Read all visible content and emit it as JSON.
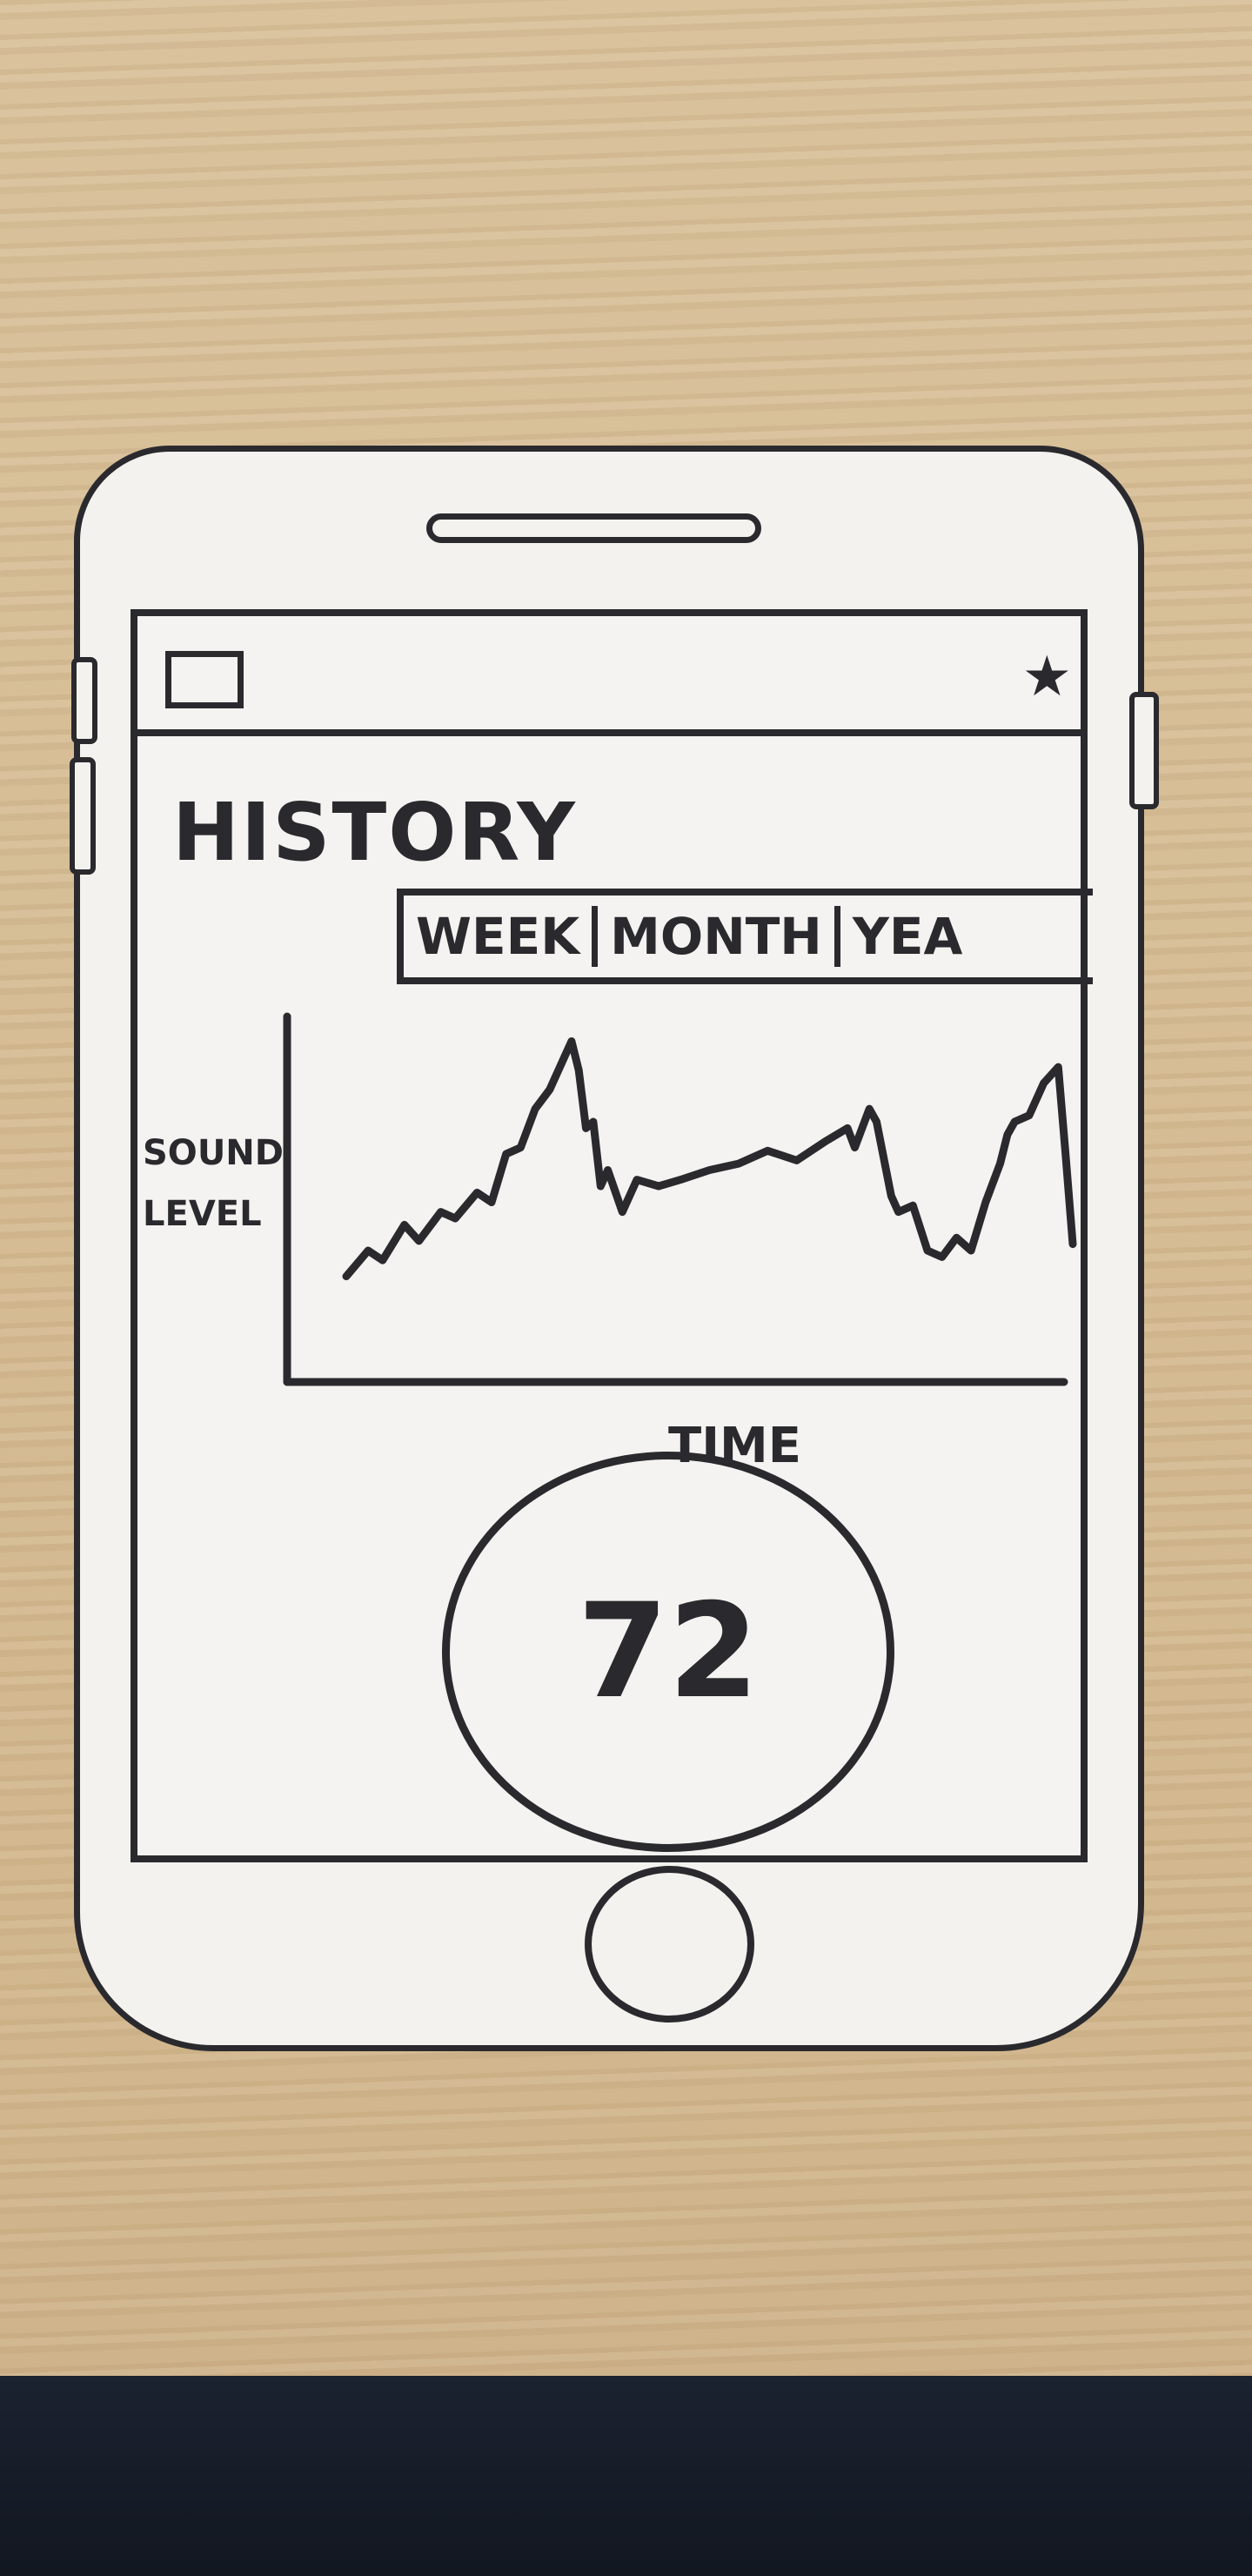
{
  "header": {
    "menu_icon": "menu-icon",
    "favorite_icon": "star-icon"
  },
  "page": {
    "title": "HISTORY"
  },
  "range_tabs": [
    {
      "label": "WEEK"
    },
    {
      "label": "MONTH"
    },
    {
      "label": "YEA"
    }
  ],
  "chart_data": {
    "type": "line",
    "title": "",
    "xlabel": "TIME",
    "ylabel": "SOUND LEVEL",
    "ylabel_lines": [
      "SOUND",
      "LEVEL"
    ],
    "ylim": [
      0,
      100
    ],
    "xlim": [
      0,
      100
    ],
    "grid": false,
    "series": [
      {
        "x": [
          0,
          3,
          5,
          8,
          10,
          13,
          15,
          18,
          20,
          22,
          24,
          26,
          28,
          30,
          31,
          32,
          33,
          34,
          35,
          36,
          38,
          40,
          43,
          46,
          50,
          54,
          58,
          62,
          66,
          69,
          70,
          72,
          73,
          75,
          76,
          78,
          80,
          82,
          84,
          86,
          88,
          90,
          91,
          92,
          94,
          96,
          98,
          99,
          100
        ],
        "y": [
          22,
          30,
          27,
          38,
          33,
          42,
          40,
          48,
          45,
          60,
          62,
          74,
          80,
          90,
          95,
          86,
          68,
          70,
          50,
          55,
          42,
          52,
          50,
          52,
          55,
          57,
          61,
          58,
          64,
          68,
          62,
          74,
          70,
          47,
          42,
          44,
          30,
          28,
          34,
          30,
          45,
          57,
          66,
          70,
          72,
          82,
          87,
          60,
          32
        ]
      }
    ]
  },
  "gauge": {
    "value": "72"
  }
}
